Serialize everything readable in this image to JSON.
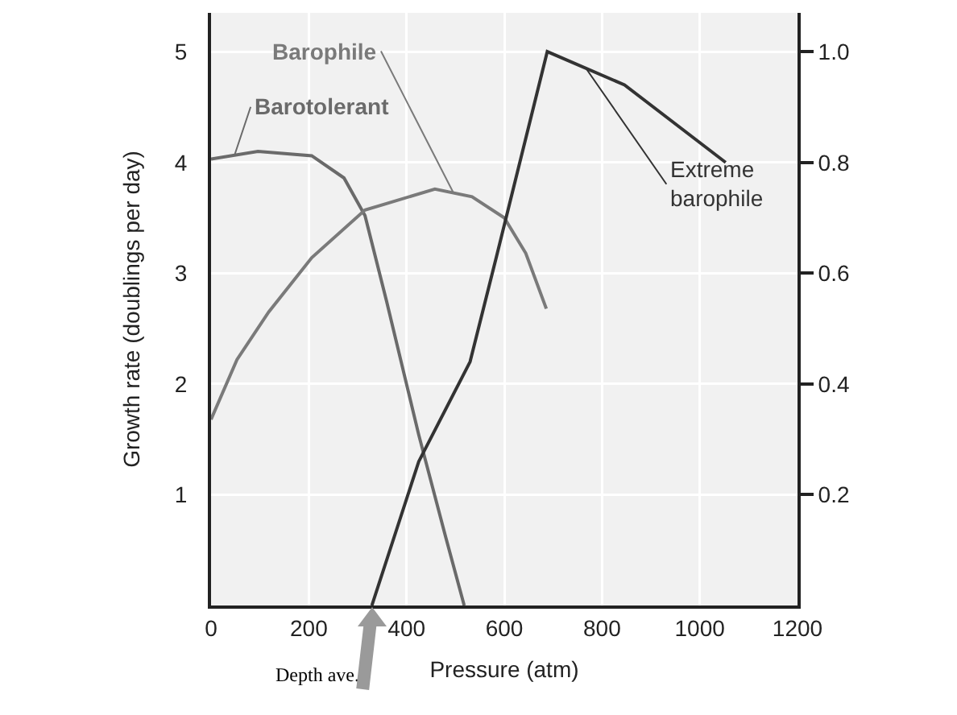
{
  "chart_data": {
    "type": "line",
    "xlabel": "Pressure (atm)",
    "ylabel": "Growth rate (doublings per day)",
    "xlim": [
      0,
      1200
    ],
    "xticks": [
      0,
      200,
      400,
      600,
      800,
      1000,
      1200
    ],
    "ylim": [
      0,
      5.35
    ],
    "yticks": [
      1,
      2,
      3,
      4,
      5
    ],
    "y2lim": [
      0,
      1.07
    ],
    "y2ticks": [
      0.2,
      0.4,
      0.6,
      0.8,
      {
        "value": 1,
        "label": "1.0"
      }
    ],
    "grid": true,
    "legend": false,
    "marker": "none",
    "line_style": "solid",
    "series": [
      {
        "name": "Barotolerant",
        "color": "#6a6a6a",
        "x": [
          0,
          96,
          206,
          272,
          315,
          359,
          425,
          480,
          518
        ],
        "values": [
          4.03,
          4.1,
          4.06,
          3.86,
          3.52,
          2.75,
          1.54,
          0.62,
          0
        ]
      },
      {
        "name": "Barophile",
        "color": "#7a7a7a",
        "x": [
          0,
          53,
          118,
          206,
          315,
          458,
          534,
          600,
          644,
          686
        ],
        "values": [
          1.68,
          2.22,
          2.65,
          3.14,
          3.57,
          3.76,
          3.69,
          3.5,
          3.18,
          2.68
        ]
      },
      {
        "name": "Extreme barophile",
        "color": "#333333",
        "axis": "y2",
        "x": [
          329,
          425,
          530,
          584,
          688,
          846,
          1053
        ],
        "values": [
          0,
          0.26,
          0.44,
          0.63,
          1.0,
          0.94,
          0.8
        ]
      }
    ],
    "annotations": [
      {
        "text": "Depth ave.",
        "x": 330,
        "y": 0
      }
    ]
  }
}
